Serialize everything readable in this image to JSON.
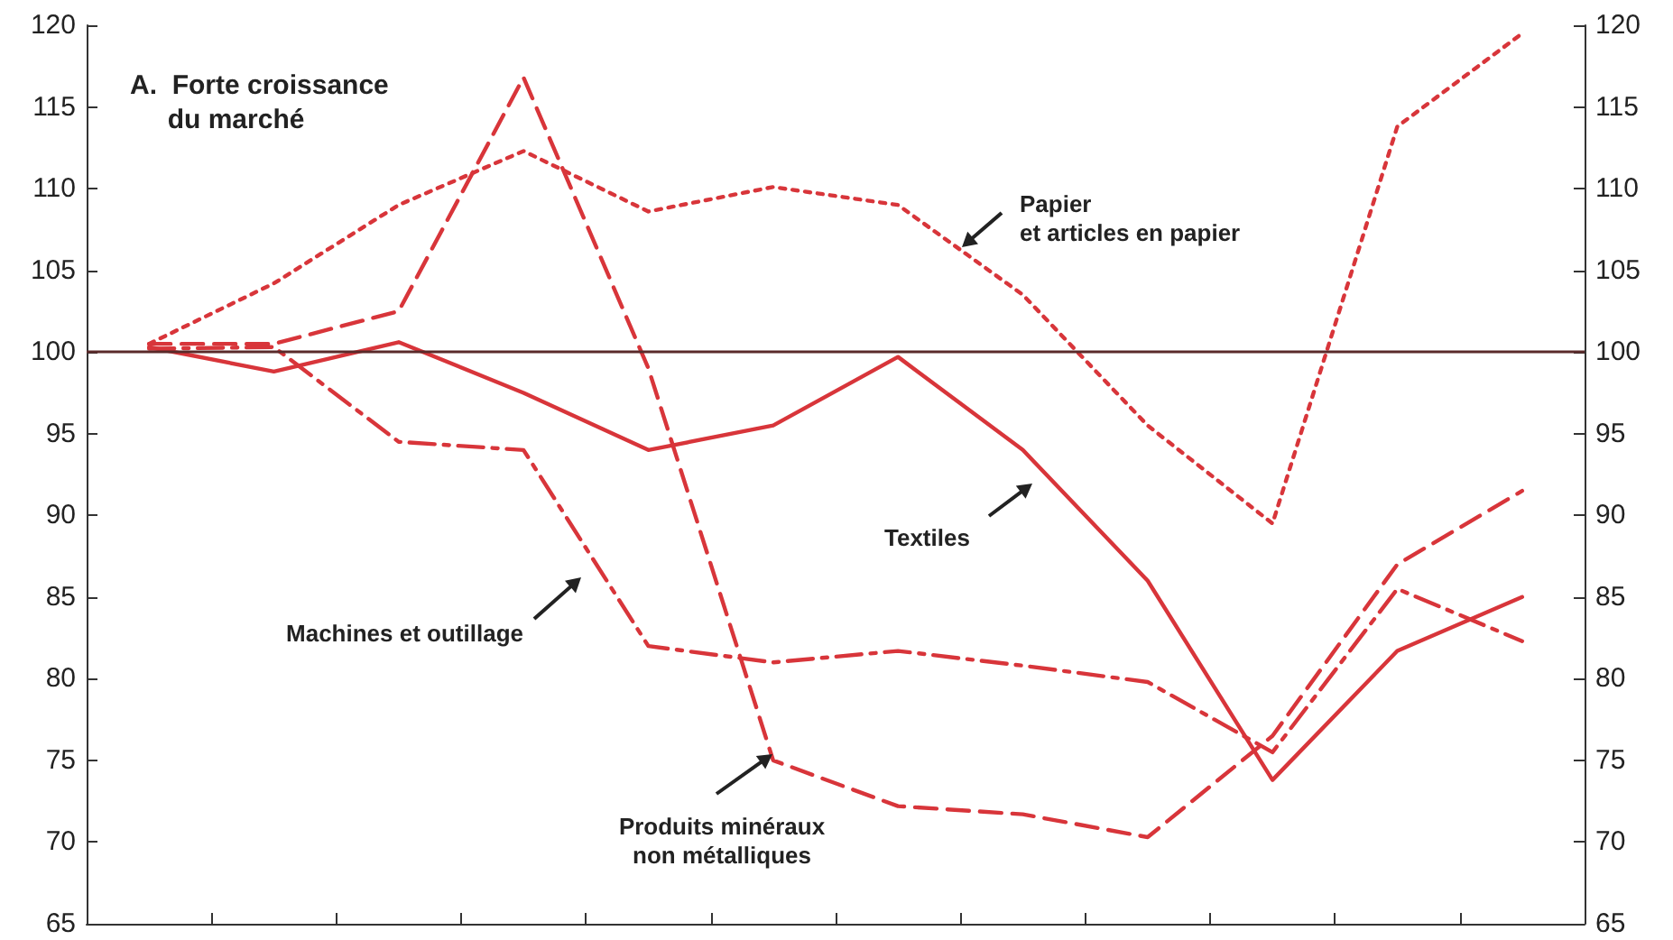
{
  "chart_data": {
    "type": "line",
    "title": "A.  Forte croissance\n     du marché",
    "categories": [
      null,
      null,
      null,
      null,
      null,
      null,
      null,
      null,
      null,
      null,
      null,
      null
    ],
    "series": [
      {
        "color": "#d8353a",
        "line_style": "dotted",
        "values": [
          100.5,
          104.2,
          109,
          112.3,
          108.6,
          110.1,
          109,
          103.5,
          95.5,
          89.5,
          113.8,
          119.5
        ]
      },
      {
        "color": "#d8353a",
        "line_style": "solid",
        "values": [
          100.3,
          98.8,
          100.6,
          97.5,
          94,
          95.5,
          99.7,
          94,
          86,
          73.8,
          81.7,
          85
        ]
      },
      {
        "color": "#d8353a",
        "line_style": "dashdot",
        "values": [
          100.2,
          100.3,
          94.5,
          94,
          82,
          81,
          81.7,
          80.8,
          79.8,
          75.5,
          85.5,
          82.3
        ]
      },
      {
        "color": "#d8353a",
        "line_style": "dashed",
        "values": [
          100.5,
          100.5,
          102.5,
          116.8,
          99,
          75,
          72.2,
          71.7,
          70.3,
          76.5,
          87,
          91.5
        ]
      }
    ],
    "ylim": [
      65,
      120
    ],
    "yticks": [
      65,
      70,
      75,
      80,
      85,
      90,
      95,
      100,
      105,
      110,
      115,
      120
    ],
    "y2lim": [
      65,
      120
    ],
    "y2ticks": [
      65,
      70,
      75,
      80,
      85,
      90,
      95,
      100,
      105,
      110,
      115,
      120
    ],
    "ref_lines": [
      {
        "axis": "y",
        "value": 100,
        "color": "#5a2a2a"
      }
    ],
    "annotations": [
      "Papier\net articles en papier",
      "Textiles",
      "Machines et outillage",
      "Produits minéraux\nnon métalliques"
    ],
    "grid": false,
    "marker": "none"
  }
}
